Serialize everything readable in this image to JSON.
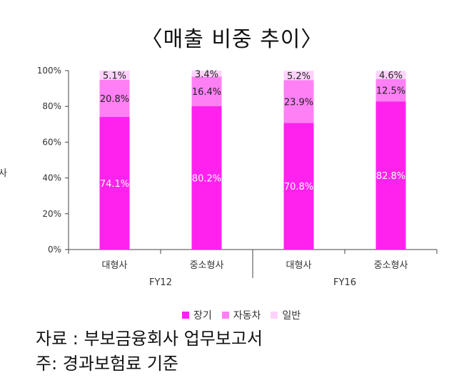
{
  "chart_data": {
    "type": "bar",
    "stacked": true,
    "title": "〈매출 비중 추이〉",
    "edge_label": "사",
    "yticks": [
      "0%",
      "20%",
      "40%",
      "60%",
      "80%",
      "100%"
    ],
    "ylim": [
      0,
      100
    ],
    "categories": [
      "대형사",
      "중소형사",
      "대형사",
      "중소형사"
    ],
    "groups": [
      {
        "label": "FY12",
        "span": [
          0,
          1
        ]
      },
      {
        "label": "FY16",
        "span": [
          2,
          3
        ]
      }
    ],
    "series": [
      {
        "name": "장기",
        "color": "#ff22ee",
        "values": [
          74.1,
          80.2,
          70.8,
          82.8
        ],
        "labels": [
          "74.1%",
          "80.2%",
          "70.8%",
          "82.8%"
        ]
      },
      {
        "name": "자동차",
        "color": "#ff80f4",
        "values": [
          20.8,
          16.4,
          23.9,
          12.5
        ],
        "labels": [
          "20.8%",
          "16.4%",
          "23.9%",
          "12.5%"
        ]
      },
      {
        "name": "일반",
        "color": "#ffd2fb",
        "values": [
          5.1,
          3.4,
          5.2,
          4.6
        ],
        "labels": [
          "5.1%",
          "3.4%",
          "5.2%",
          "4.6%"
        ]
      }
    ],
    "legend_position": "bottom",
    "grid": false
  },
  "footer": {
    "source": "자료 : 부보금융회사 업무보고서",
    "note": "주: 경과보험료 기준"
  }
}
